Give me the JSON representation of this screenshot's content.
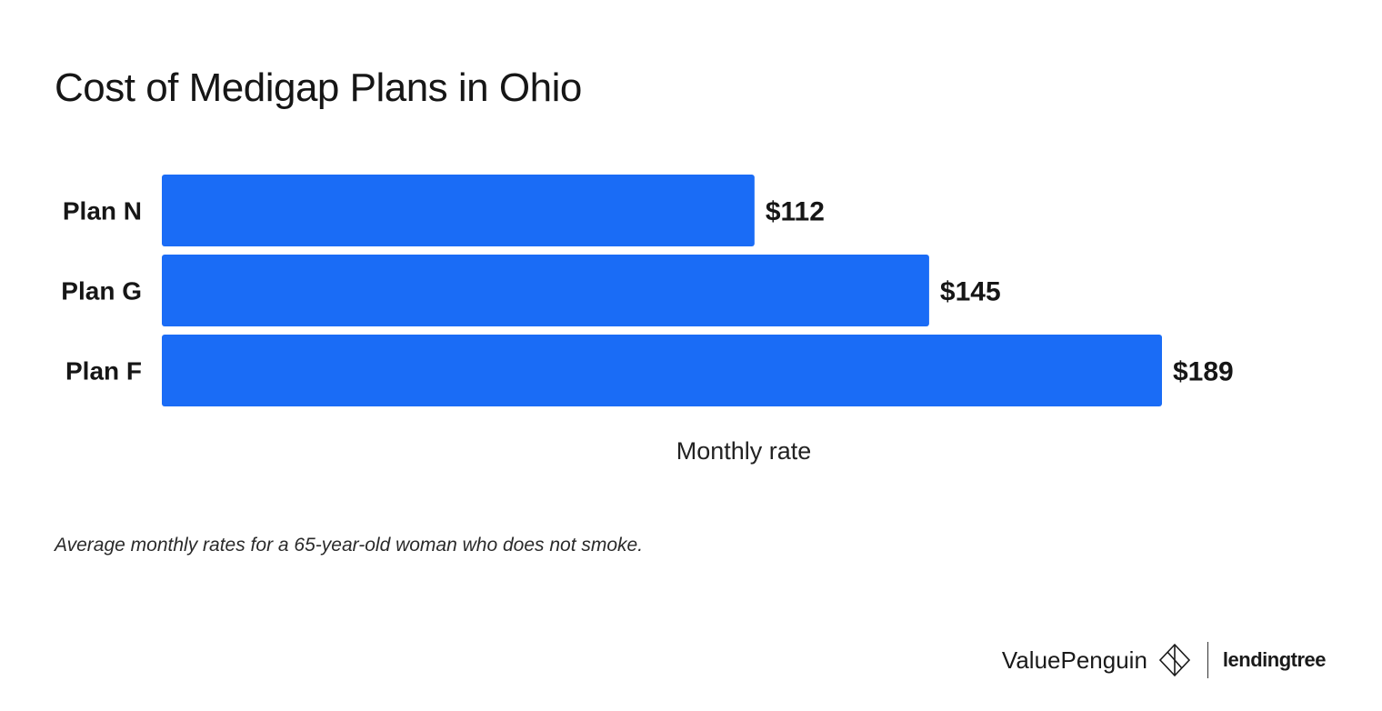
{
  "title": "Cost of Medigap Plans in Ohio",
  "footnote": "Average monthly rates for a 65-year-old woman who does not smoke.",
  "brand": {
    "valuepenguin": "ValuePenguin",
    "lendingtree": "lendingtree"
  },
  "colors": {
    "bar": "#1a6cf6",
    "text": "#161616"
  },
  "chart_data": {
    "type": "bar",
    "orientation": "horizontal",
    "categories": [
      "Plan N",
      "Plan G",
      "Plan F"
    ],
    "values": [
      112,
      145,
      189
    ],
    "value_labels": [
      "$112",
      "$145",
      "$189"
    ],
    "xlabel": "Monthly rate",
    "ylabel": "",
    "xlim": [
      0,
      200
    ],
    "grid": false,
    "legend": "none"
  }
}
